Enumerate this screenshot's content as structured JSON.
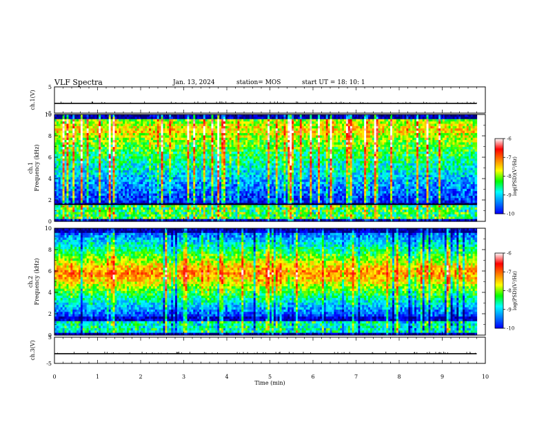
{
  "header": {
    "title": "VLF Spectra",
    "date": "Jan. 13, 2024",
    "station": "station= MOS",
    "start_ut": "start UT =  18: 10: 1"
  },
  "chart_data": {
    "type": "heatmap",
    "xlabel": "Time (min)",
    "xlim": [
      0,
      10
    ],
    "xticks": [
      "0",
      "1",
      "2",
      "3",
      "4",
      "5",
      "6",
      "7",
      "8",
      "9",
      "10"
    ],
    "panels": [
      {
        "id": "ch1-voltage",
        "type": "line",
        "ylabel": "ch.1(V)",
        "ylim": [
          -5,
          5
        ],
        "yticks": [
          "5",
          "-5"
        ],
        "trace_value_v": -1.3,
        "trace_x_end_min": 9.8
      },
      {
        "id": "ch1-spectrogram",
        "type": "heatmap",
        "ylabel_line1": "ch.1",
        "ylabel_line2": "Frequency (kHz)",
        "ylim": [
          0,
          10
        ],
        "yticks": [
          "0",
          "2",
          "4",
          "6",
          "8",
          "10"
        ],
        "data_x_end_min": 9.8,
        "horizontal_line_khz": 1.6,
        "colorbar": {
          "label": "log(PSD)(V²/Hz)",
          "range": [
            -10,
            -6
          ],
          "ticks": [
            "-6",
            "-7",
            "-8",
            "-9",
            "-10"
          ]
        }
      },
      {
        "id": "ch2-spectrogram",
        "type": "heatmap",
        "ylabel_line1": "ch.2",
        "ylabel_line2": "Frequency (kHz)",
        "ylim": [
          0,
          10
        ],
        "yticks": [
          "0",
          "2",
          "4",
          "6",
          "8",
          "10"
        ],
        "data_x_end_min": 9.8,
        "colorbar": {
          "label": "log(PSD)(V²/Hz)",
          "range": [
            -10,
            -6
          ],
          "ticks": [
            "-6",
            "-7",
            "-8",
            "-9",
            "-10"
          ]
        }
      },
      {
        "id": "ch3-voltage",
        "type": "line",
        "ylabel": "ch.3(V)",
        "ylim": [
          -5,
          5
        ],
        "yticks": [
          "5",
          "-5"
        ],
        "trace_value_v": -1.3,
        "trace_x_end_min": 9.8
      }
    ],
    "colors": {
      "colormap": [
        "#000080",
        "#0000ff",
        "#0080ff",
        "#00ffff",
        "#00ff00",
        "#ffff00",
        "#ff8000",
        "#ff0000",
        "#ffffff"
      ]
    }
  }
}
